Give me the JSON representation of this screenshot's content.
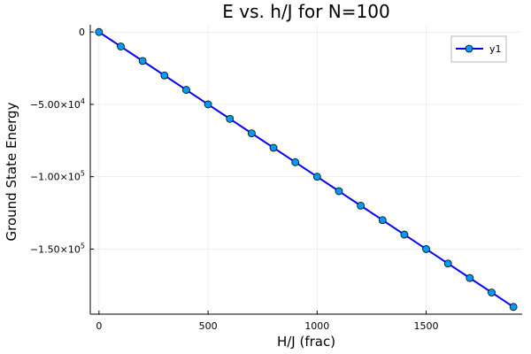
{
  "chart_data": {
    "type": "line",
    "title": "E vs. h/J for N=100",
    "xlabel": "H/J (frac)",
    "ylabel": "Ground State Energy",
    "xlim": [
      -40,
      1940
    ],
    "ylim": [
      -195000,
      5000
    ],
    "x_ticks": [
      0,
      500,
      1000,
      1500
    ],
    "x_tick_labels": [
      "0",
      "500",
      "1000",
      "1500"
    ],
    "y_ticks": [
      0,
      -50000,
      -100000,
      -150000
    ],
    "y_tick_labels": [
      {
        "mantissa": "0",
        "exponent": ""
      },
      {
        "mantissa": "−5.00×10",
        "exponent": "4"
      },
      {
        "mantissa": "−1.00×10",
        "exponent": "5"
      },
      {
        "mantissa": "−1.50×10",
        "exponent": "5"
      }
    ],
    "grid": true,
    "legend_position": "top-right",
    "colors": {
      "line": "#0000ff",
      "marker": "#009af9",
      "marker_edge": "#000000"
    },
    "series": [
      {
        "name": "y1",
        "x": [
          0,
          100,
          200,
          300,
          400,
          500,
          600,
          700,
          800,
          900,
          1000,
          1100,
          1200,
          1300,
          1400,
          1500,
          1600,
          1700,
          1800,
          1900
        ],
        "y": [
          0,
          -10000,
          -20000,
          -30000,
          -40000,
          -50000,
          -60000,
          -70000,
          -80000,
          -90000,
          -100000,
          -110000,
          -120000,
          -130000,
          -140000,
          -150000,
          -160000,
          -170000,
          -180000,
          -190000
        ]
      }
    ]
  }
}
